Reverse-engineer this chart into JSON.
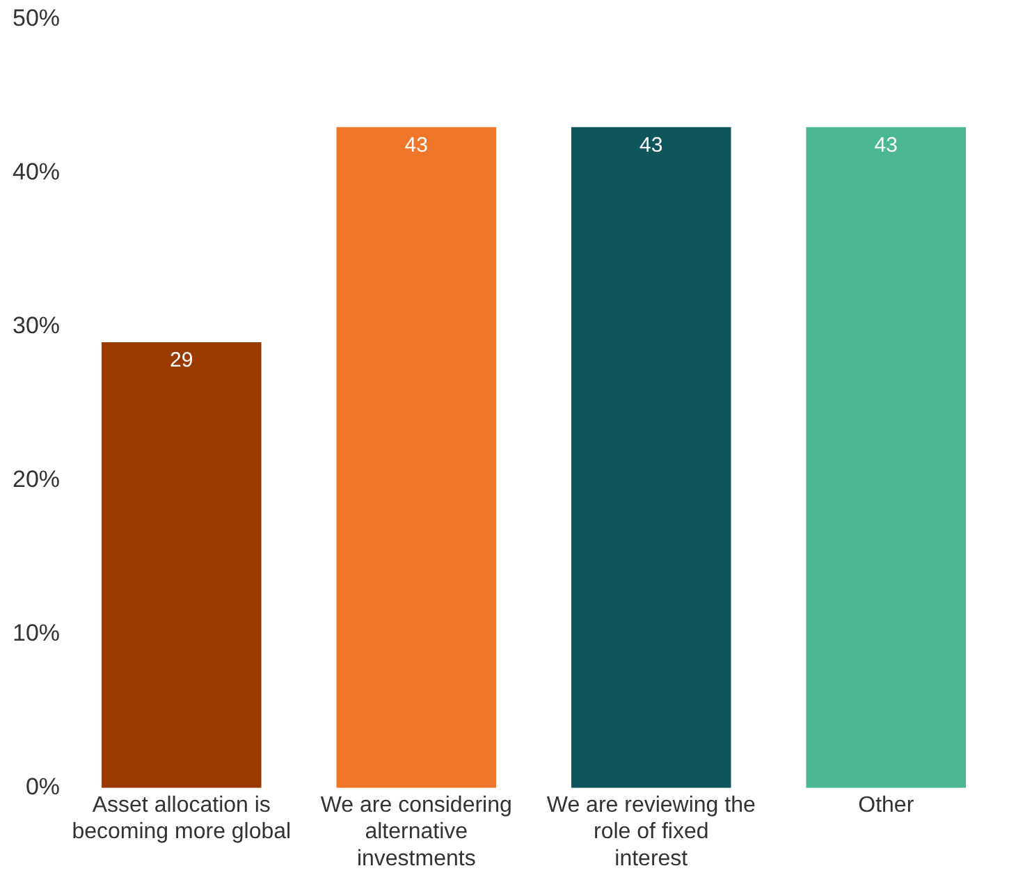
{
  "chart_data": {
    "type": "bar",
    "categories": [
      "Asset allocation is becoming more global",
      "We are considering alternative investments",
      "We are reviewing the role of fixed interest",
      "Other"
    ],
    "values": [
      29,
      43,
      43,
      43
    ],
    "colors": [
      "#9b3a00",
      "#ef7628",
      "#0f565c",
      "#4bb694"
    ],
    "ylim": [
      0,
      50
    ],
    "yticks": [
      {
        "value": 0,
        "label": "0%"
      },
      {
        "value": 10,
        "label": "10%"
      },
      {
        "value": 20,
        "label": "20%"
      },
      {
        "value": 30,
        "label": "30%"
      },
      {
        "value": 40,
        "label": "40%"
      },
      {
        "value": 50,
        "label": "50%"
      }
    ],
    "data_labels": true,
    "grid": false,
    "legend": false
  }
}
